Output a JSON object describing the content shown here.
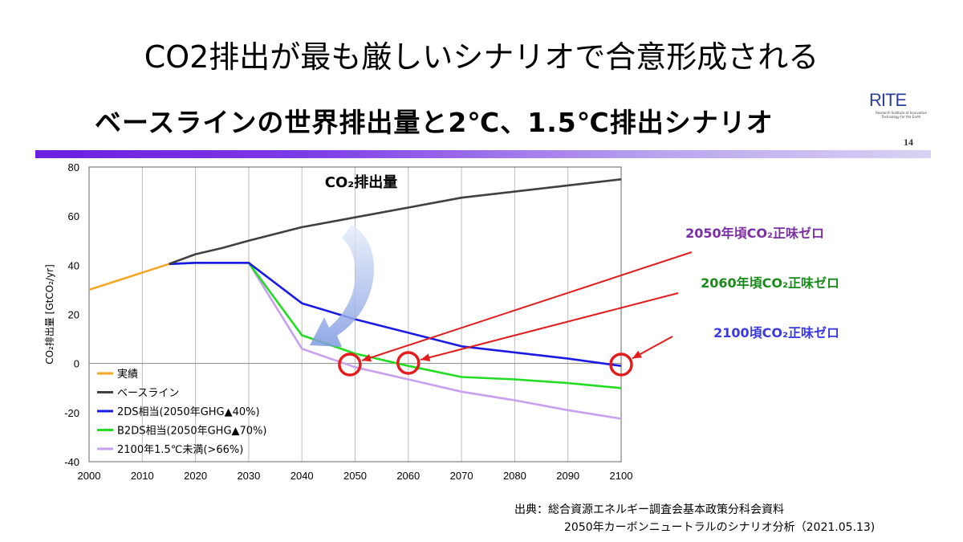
{
  "slide_title": "CO2排出が最も厳しいシナリオで合意形成される",
  "inner_title": "ベースラインの世界排出量と2℃、1.5℃排出シナリオ",
  "logo": {
    "text": "RITE",
    "subtitle": "Research Institute of Innovative Technology for the Earth"
  },
  "page_number": "14",
  "source": {
    "line1": "出典：総合資源エネルギー調査会基本政策分科会資料",
    "line2": "2050年カーボンニュートラルのシナリオ分析（2021.05.13)"
  },
  "colors": {
    "actual": "#f5a623",
    "baseline": "#404040",
    "2ds": "#1a1ae6",
    "b2ds": "#22dd22",
    "1_5c": "#c8a0f0",
    "accent": "#e51c1c"
  },
  "chart_data": {
    "type": "line",
    "title": "CO₂排出量",
    "ylabel": "CO₂排出量 [GtCO₂/yr]",
    "xlim": [
      2000,
      2100
    ],
    "ylim": [
      -40,
      80
    ],
    "x_ticks": [
      2000,
      2010,
      2020,
      2030,
      2040,
      2050,
      2060,
      2070,
      2080,
      2090,
      2100
    ],
    "y_ticks": [
      80,
      60,
      40,
      20,
      0,
      -20,
      -40
    ],
    "grid": "vertical",
    "legend": "bottom-left",
    "series": [
      {
        "name": "実績",
        "color_key": "actual",
        "points": [
          [
            2000,
            30
          ],
          [
            2015,
            40.5
          ]
        ]
      },
      {
        "name": "ベースライン",
        "color_key": "baseline",
        "points": [
          [
            2015,
            40.5
          ],
          [
            2020,
            44.5
          ],
          [
            2025,
            47
          ],
          [
            2030,
            50
          ],
          [
            2040,
            55.5
          ],
          [
            2050,
            59.5
          ],
          [
            2060,
            63.5
          ],
          [
            2070,
            67.5
          ],
          [
            2080,
            70
          ],
          [
            2090,
            72.5
          ],
          [
            2100,
            75
          ]
        ]
      },
      {
        "name": "2DS相当(2050年GHG▲40%)",
        "color_key": "2ds",
        "points": [
          [
            2015,
            40.5
          ],
          [
            2020,
            41
          ],
          [
            2030,
            41
          ],
          [
            2040,
            24.5
          ],
          [
            2050,
            18
          ],
          [
            2060,
            12.5
          ],
          [
            2070,
            7
          ],
          [
            2080,
            4.5
          ],
          [
            2090,
            2
          ],
          [
            2100,
            -1
          ]
        ]
      },
      {
        "name": "B2DS相当(2050年GHG▲70%)",
        "color_key": "b2ds",
        "points": [
          [
            2015,
            40.5
          ],
          [
            2020,
            41
          ],
          [
            2030,
            41
          ],
          [
            2040,
            11.5
          ],
          [
            2050,
            4
          ],
          [
            2060,
            -1
          ],
          [
            2070,
            -5.5
          ],
          [
            2080,
            -6.5
          ],
          [
            2090,
            -8
          ],
          [
            2100,
            -10
          ]
        ]
      },
      {
        "name": "2100年1.5℃未満(>66%)",
        "color_key": "1_5c",
        "points": [
          [
            2015,
            40.5
          ],
          [
            2020,
            41
          ],
          [
            2030,
            41
          ],
          [
            2040,
            6
          ],
          [
            2050,
            -1.5
          ],
          [
            2060,
            -6.5
          ],
          [
            2070,
            -11.5
          ],
          [
            2080,
            -15
          ],
          [
            2090,
            -19
          ],
          [
            2100,
            -22.5
          ]
        ]
      }
    ],
    "annotations": [
      {
        "text": "2050年頃CO₂正味ゼロ",
        "color": "#7b2fa3",
        "target_x": 2049
      },
      {
        "text": "2060年頃CO₂正味ゼロ",
        "color": "#1a8a1a",
        "target_x": 2060
      },
      {
        "text": "2100頃CO₂正味ゼロ",
        "color": "#3a3ae0",
        "target_x": 2100
      }
    ]
  }
}
